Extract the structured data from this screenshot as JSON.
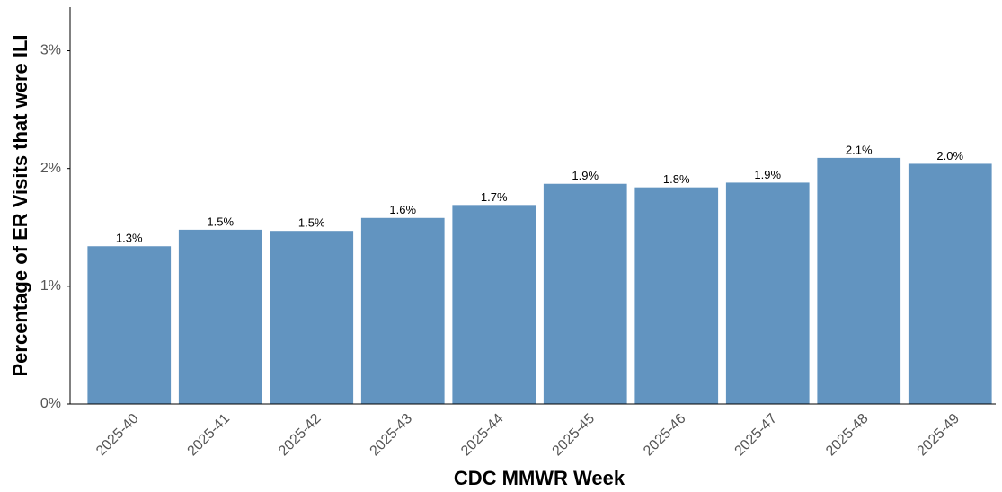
{
  "chart_data": {
    "type": "bar",
    "x_label": "CDC MMWR Week",
    "y_label": "Percentage of ER Visits that were ILI",
    "categories": [
      "2025-40",
      "2025-41",
      "2025-42",
      "2025-43",
      "2025-44",
      "2025-45",
      "2025-46",
      "2025-47",
      "2025-48",
      "2025-49"
    ],
    "values": [
      1.34,
      1.48,
      1.47,
      1.58,
      1.69,
      1.87,
      1.84,
      1.88,
      2.09,
      2.04
    ],
    "value_labels": [
      "1.3%",
      "1.5%",
      "1.5%",
      "1.6%",
      "1.7%",
      "1.9%",
      "1.8%",
      "1.9%",
      "2.1%",
      "2.0%"
    ],
    "color": "#6294c0",
    "ylim": [
      0,
      3.37
    ],
    "yticks": [
      {
        "value": 0,
        "label": "0%"
      },
      {
        "value": 1,
        "label": "1%"
      },
      {
        "value": 2,
        "label": "2%"
      },
      {
        "value": 3,
        "label": "3%"
      }
    ],
    "grid": false
  }
}
